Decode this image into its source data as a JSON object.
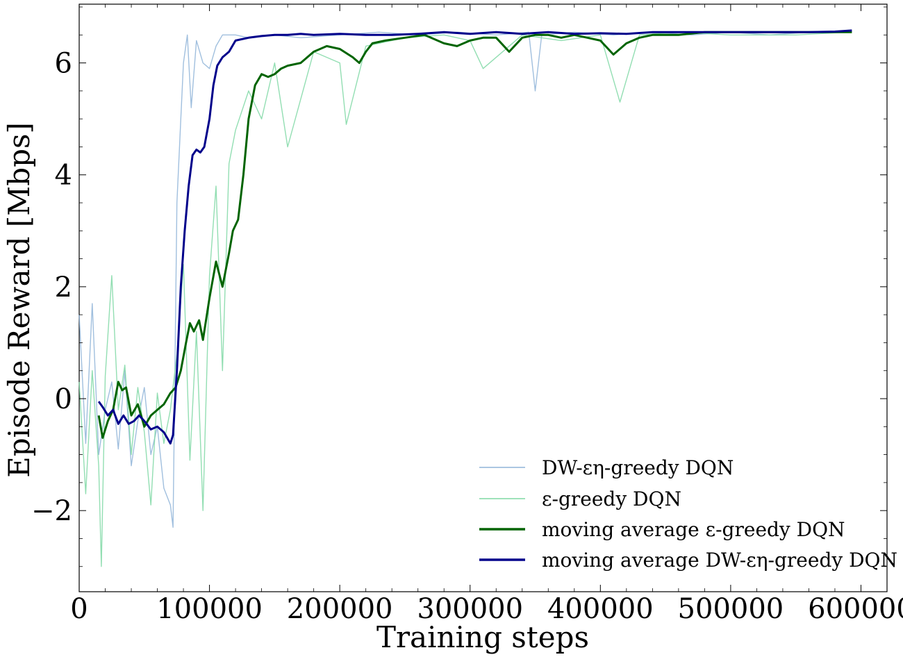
{
  "chart_data": {
    "type": "line",
    "xlabel": "Training steps",
    "ylabel": "Episode Reward [Mbps]",
    "xlim": [
      0,
      620000
    ],
    "ylim": [
      -3.45,
      7.05
    ],
    "x_ticks": [
      0,
      100000,
      200000,
      300000,
      400000,
      500000,
      600000
    ],
    "x_tick_labels": [
      "0",
      "100000",
      "200000",
      "300000",
      "400000",
      "500000",
      "600000"
    ],
    "y_ticks": [
      -2,
      0,
      2,
      4,
      6
    ],
    "y_tick_labels": [
      "−2",
      "0",
      "2",
      "4",
      "6"
    ],
    "grid": false,
    "legend_position": "lower-right",
    "series": [
      {
        "name": "DW-εη-greedy DQN",
        "color": "#8fb4d8",
        "style": "raw",
        "x": [
          0,
          5000,
          10000,
          15000,
          20000,
          25000,
          30000,
          35000,
          40000,
          45000,
          50000,
          55000,
          60000,
          65000,
          70000,
          72000,
          75000,
          78000,
          80000,
          83000,
          86000,
          90000,
          95000,
          100000,
          105000,
          110000,
          120000,
          130000,
          150000,
          170000,
          200000,
          230000,
          260000,
          290000,
          320000,
          345000,
          350000,
          355000,
          380000,
          410000,
          440000,
          470000,
          500000,
          530000,
          560000,
          590000
        ],
        "y": [
          1.5,
          -0.8,
          1.7,
          -1.0,
          -0.2,
          0.3,
          -0.9,
          0.5,
          -1.2,
          -0.4,
          0.2,
          -1.0,
          -0.5,
          -1.6,
          -1.9,
          -2.3,
          3.5,
          5.0,
          6.0,
          6.5,
          5.2,
          6.4,
          6.0,
          5.9,
          6.3,
          6.5,
          6.5,
          6.45,
          6.5,
          6.45,
          6.5,
          6.55,
          6.5,
          6.55,
          6.5,
          6.55,
          5.5,
          6.5,
          6.55,
          6.5,
          6.55,
          6.5,
          6.55,
          6.5,
          6.55,
          6.55
        ]
      },
      {
        "name": "ε-greedy DQN",
        "color": "#7fd8a4",
        "style": "raw",
        "x": [
          0,
          5000,
          10000,
          15000,
          17000,
          20000,
          25000,
          30000,
          35000,
          40000,
          45000,
          50000,
          55000,
          60000,
          65000,
          70000,
          75000,
          80000,
          85000,
          90000,
          95000,
          100000,
          105000,
          110000,
          115000,
          120000,
          130000,
          140000,
          150000,
          160000,
          180000,
          200000,
          205000,
          220000,
          250000,
          280000,
          300000,
          310000,
          340000,
          370000,
          400000,
          415000,
          430000,
          460000,
          500000,
          550000,
          590000
        ],
        "y": [
          0.3,
          -1.7,
          0.5,
          -1.2,
          -3.0,
          0.4,
          2.2,
          -0.2,
          0.6,
          -1.0,
          0.2,
          -0.6,
          -1.9,
          0.1,
          -0.8,
          -0.2,
          0.8,
          2.4,
          -1.1,
          1.2,
          -2.0,
          2.2,
          3.8,
          0.5,
          4.2,
          4.8,
          5.5,
          5.0,
          6.0,
          4.5,
          6.2,
          6.0,
          4.9,
          6.3,
          6.45,
          6.5,
          6.4,
          5.9,
          6.5,
          6.4,
          6.5,
          5.3,
          6.5,
          6.55,
          6.5,
          6.5,
          6.55
        ]
      },
      {
        "name": "moving average ε-greedy DQN",
        "color": "#006400",
        "style": "avg",
        "x": [
          15000,
          18000,
          22000,
          26000,
          30000,
          33000,
          36000,
          40000,
          45000,
          50000,
          55000,
          60000,
          65000,
          70000,
          74000,
          78000,
          82000,
          85000,
          88000,
          92000,
          95000,
          100000,
          105000,
          110000,
          115000,
          118000,
          122000,
          126000,
          130000,
          135000,
          140000,
          145000,
          150000,
          155000,
          160000,
          170000,
          180000,
          190000,
          200000,
          210000,
          215000,
          220000,
          225000,
          235000,
          250000,
          265000,
          280000,
          290000,
          300000,
          310000,
          320000,
          330000,
          340000,
          350000,
          360000,
          370000,
          380000,
          390000,
          400000,
          410000,
          420000,
          430000,
          440000,
          460000,
          480000,
          500000,
          520000,
          540000,
          560000,
          580000,
          593000
        ],
        "y": [
          -0.3,
          -0.7,
          -0.4,
          -0.2,
          0.3,
          0.15,
          0.2,
          -0.3,
          -0.1,
          -0.5,
          -0.3,
          -0.2,
          -0.1,
          0.1,
          0.2,
          0.5,
          1.0,
          1.35,
          1.2,
          1.4,
          1.05,
          1.8,
          2.45,
          2.0,
          2.6,
          3.0,
          3.2,
          4.0,
          5.0,
          5.6,
          5.8,
          5.75,
          5.8,
          5.9,
          5.95,
          6.0,
          6.2,
          6.3,
          6.25,
          6.1,
          6.0,
          6.2,
          6.35,
          6.4,
          6.45,
          6.5,
          6.35,
          6.3,
          6.4,
          6.45,
          6.45,
          6.2,
          6.45,
          6.5,
          6.5,
          6.45,
          6.5,
          6.45,
          6.4,
          6.15,
          6.35,
          6.45,
          6.5,
          6.5,
          6.55,
          6.55,
          6.55,
          6.55,
          6.55,
          6.55,
          6.55
        ]
      },
      {
        "name": "moving average DW-εη-greedy DQN",
        "color": "#00008b",
        "style": "avg",
        "x": [
          15000,
          18000,
          22000,
          26000,
          30000,
          34000,
          38000,
          42000,
          46000,
          50000,
          55000,
          60000,
          65000,
          70000,
          72000,
          75000,
          78000,
          81000,
          84000,
          87000,
          90000,
          93000,
          96000,
          100000,
          103000,
          106000,
          110000,
          115000,
          120000,
          130000,
          140000,
          150000,
          160000,
          170000,
          180000,
          200000,
          220000,
          240000,
          260000,
          280000,
          300000,
          320000,
          340000,
          360000,
          380000,
          400000,
          420000,
          440000,
          460000,
          480000,
          500000,
          520000,
          540000,
          560000,
          580000,
          593000
        ],
        "y": [
          -0.05,
          -0.15,
          -0.3,
          -0.2,
          -0.45,
          -0.3,
          -0.45,
          -0.4,
          -0.3,
          -0.4,
          -0.55,
          -0.5,
          -0.6,
          -0.8,
          -0.65,
          0.5,
          2.0,
          3.0,
          3.8,
          4.35,
          4.45,
          4.4,
          4.5,
          5.0,
          5.6,
          5.95,
          6.1,
          6.2,
          6.4,
          6.45,
          6.48,
          6.5,
          6.5,
          6.52,
          6.5,
          6.52,
          6.5,
          6.5,
          6.52,
          6.55,
          6.52,
          6.55,
          6.52,
          6.55,
          6.52,
          6.53,
          6.52,
          6.55,
          6.55,
          6.55,
          6.55,
          6.55,
          6.55,
          6.55,
          6.56,
          6.58
        ]
      }
    ]
  }
}
